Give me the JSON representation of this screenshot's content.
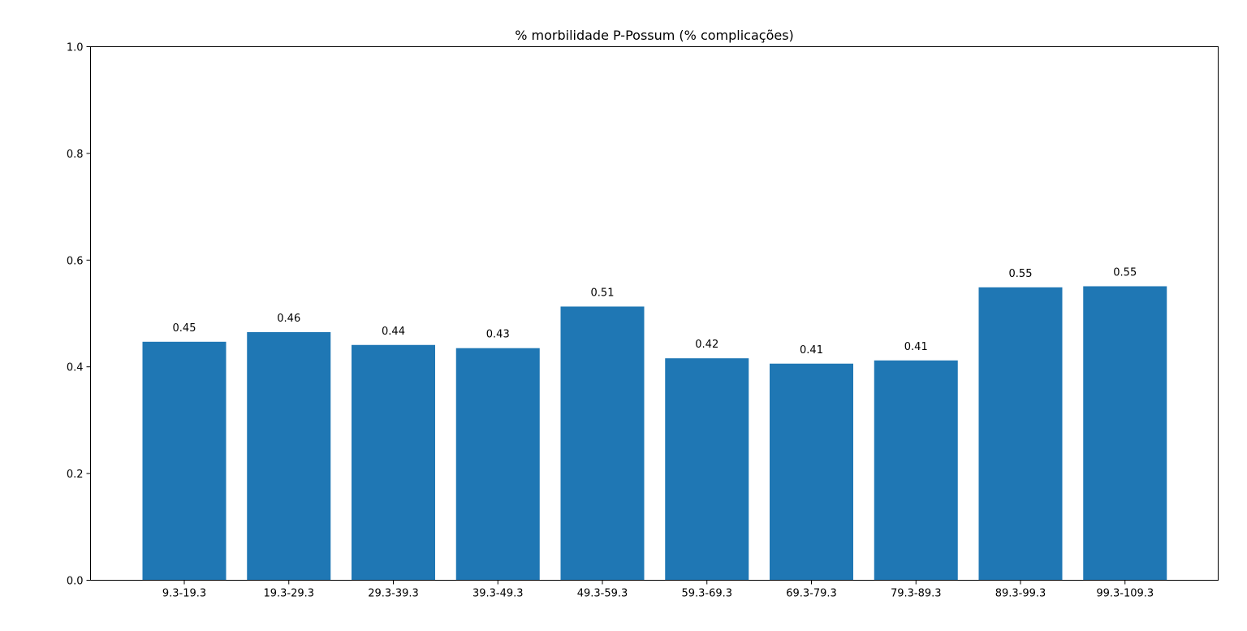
{
  "chart_data": {
    "type": "bar",
    "title": "% morbilidade P-Possum (% complicações)",
    "xlabel": "",
    "ylabel": "",
    "categories": [
      "9.3-19.3",
      "19.3-29.3",
      "29.3-39.3",
      "39.3-49.3",
      "49.3-59.3",
      "59.3-69.3",
      "69.3-79.3",
      "79.3-89.3",
      "89.3-99.3",
      "99.3-109.3"
    ],
    "values": [
      0.447,
      0.465,
      0.441,
      0.435,
      0.513,
      0.416,
      0.406,
      0.412,
      0.549,
      0.551
    ],
    "data_labels": [
      "0.45",
      "0.46",
      "0.44",
      "0.43",
      "0.51",
      "0.42",
      "0.41",
      "0.41",
      "0.55",
      "0.55"
    ],
    "ylim": [
      0,
      1.0
    ],
    "yticks": [
      0.0,
      0.2,
      0.4,
      0.6,
      0.8,
      1.0
    ],
    "ytick_labels": [
      "0.0",
      "0.2",
      "0.4",
      "0.6",
      "0.8",
      "1.0"
    ],
    "bar_color": "#1f77b4",
    "grid": false,
    "legend": "none"
  }
}
